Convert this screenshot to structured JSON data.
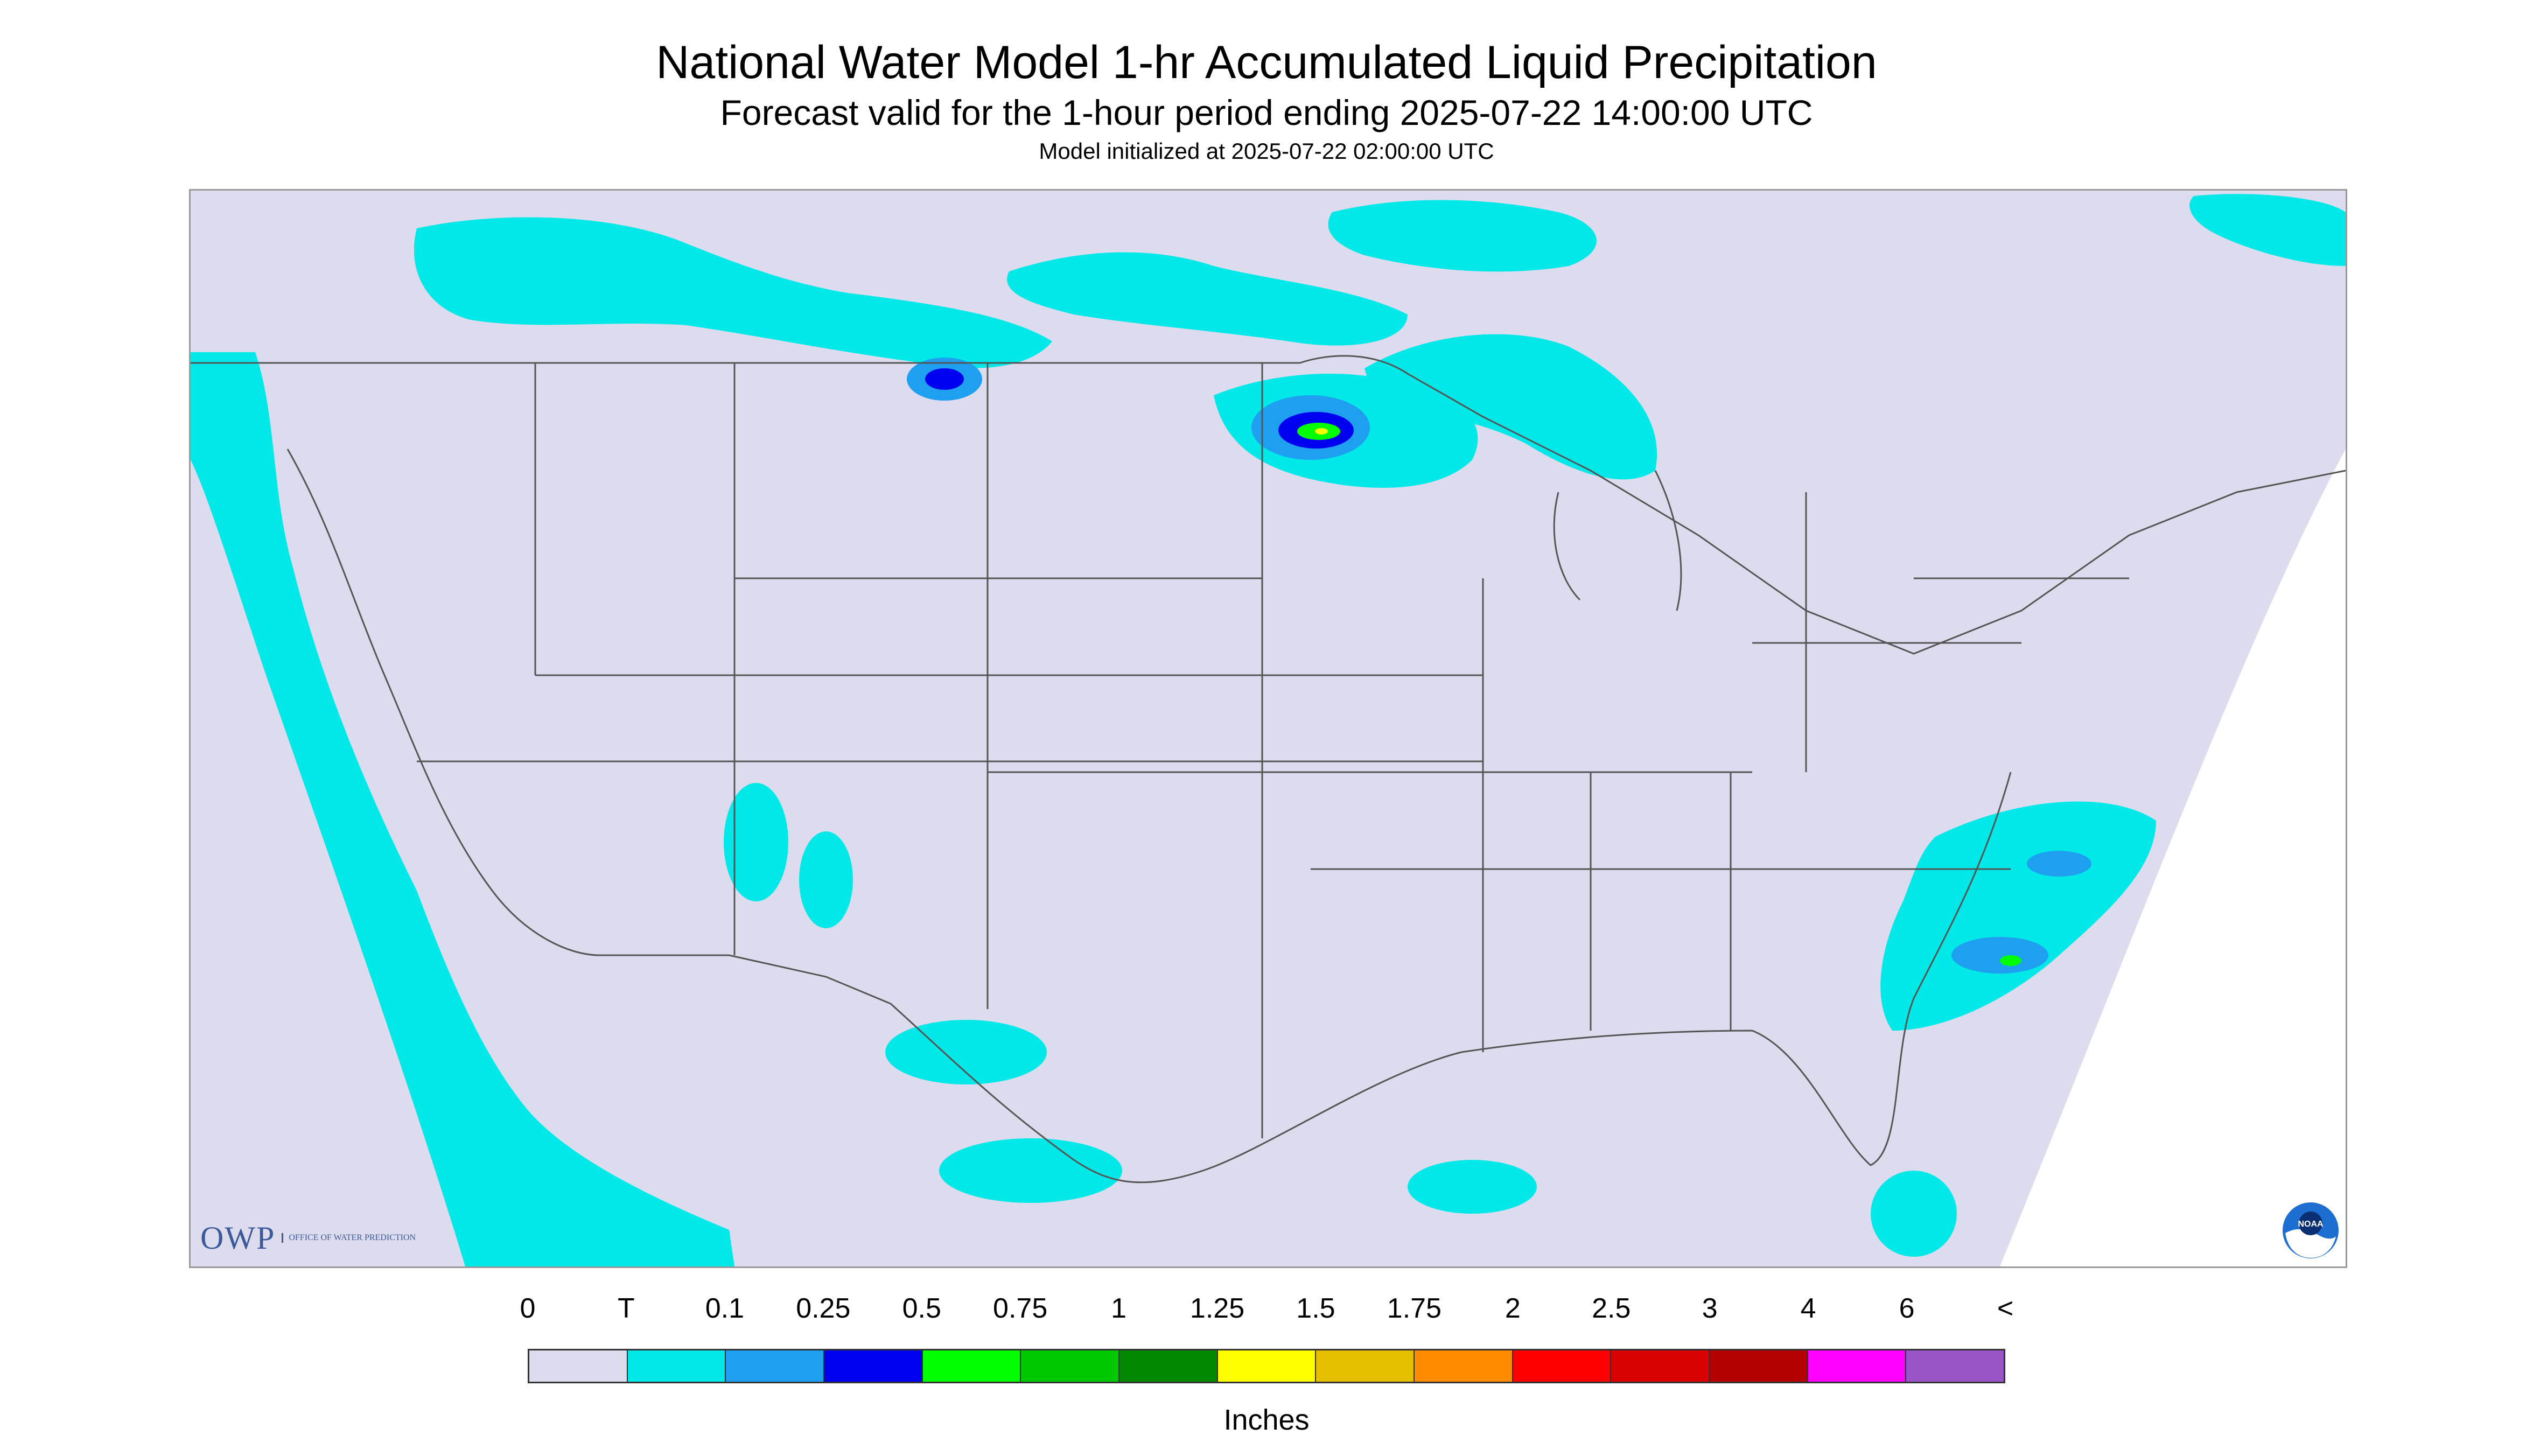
{
  "title": "National Water Model 1-hr Accumulated Liquid Precipitation",
  "subtitle": "Forecast valid for the 1-hour period ending 2025-07-22 14:00:00 UTC",
  "init_line": "Model initialized at 2025-07-22 02:00:00 UTC",
  "logos": {
    "owp_text": "OWP",
    "owp_subtext": "Office of Water Prediction",
    "noaa_text": "NOAA"
  },
  "colors": {
    "map_background": "#dcdcee",
    "state_lines": "#555555",
    "outside_domain": "#ffffff",
    "precip_trace": "#00e8e8",
    "precip_light": "#1e9fef",
    "precip_moderate": "#0000f0",
    "precip_green": "#00ff00",
    "precip_yellow": "#ffff00"
  },
  "legend": {
    "labels": [
      "0",
      "T",
      "0.1",
      "0.25",
      "0.5",
      "0.75",
      "1",
      "1.25",
      "1.5",
      "1.75",
      "2",
      "2.5",
      "3",
      "4",
      "6",
      "<"
    ],
    "swatches": [
      "#dcdcee",
      "#00e8e8",
      "#1e9fef",
      "#0000f0",
      "#00ff00",
      "#00c800",
      "#008800",
      "#ffff00",
      "#e6be00",
      "#ff8c00",
      "#ff0000",
      "#d80000",
      "#b40000",
      "#ff00ff",
      "#9955c8"
    ],
    "units": "Inches"
  }
}
